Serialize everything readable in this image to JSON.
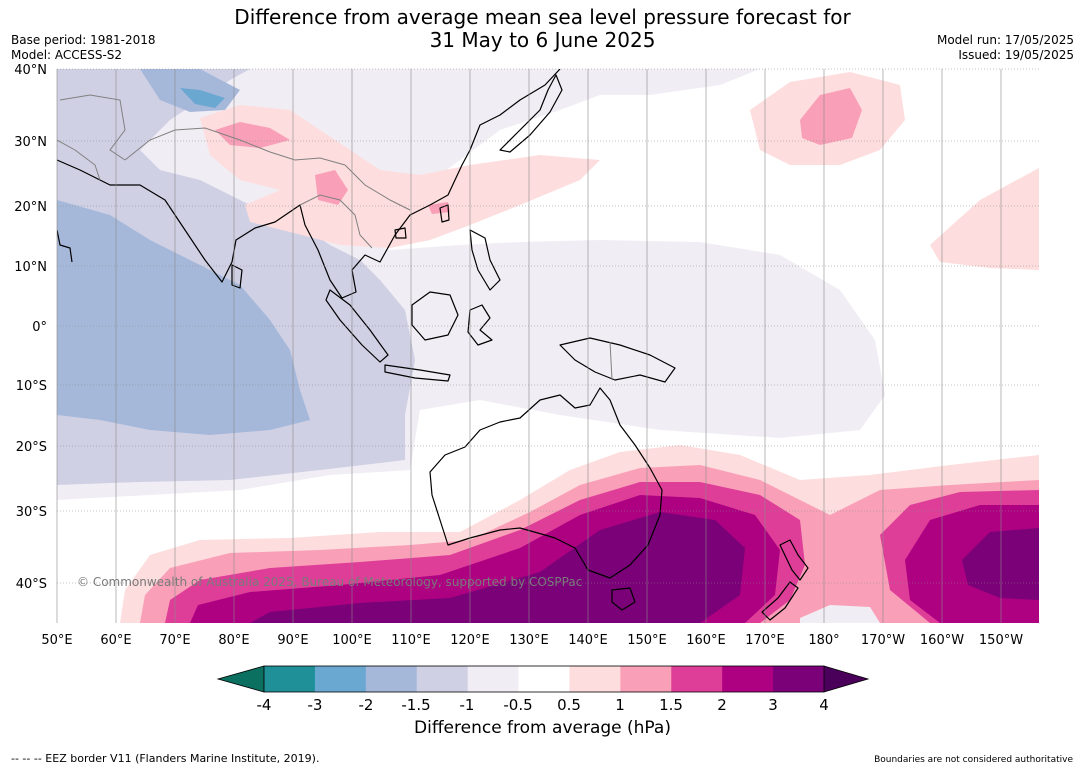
{
  "title_line1": "Difference from average mean sea level pressure forecast for",
  "title_line2": "31 May to 6 June 2025",
  "base_period": "Base period: 1981-2018",
  "model": "Model: ACCESS-S2",
  "model_run": "Model run: 17/05/2025",
  "issued": "Issued: 19/05/2025",
  "copyright": "© Commonwealth of Australia 2025, Bureau of Meteorology, supported by COSPPac",
  "lat_labels": [
    "40°N",
    "30°N",
    "20°N",
    "10°N",
    "0°",
    "10°S",
    "20°S",
    "30°S",
    "40°S"
  ],
  "lon_labels": [
    "50°E",
    "60°E",
    "70°E",
    "80°E",
    "90°E",
    "100°E",
    "110°E",
    "120°E",
    "130°E",
    "140°E",
    "150°E",
    "160°E",
    "170°E",
    "180°",
    "170°W",
    "160°W",
    "150°W"
  ],
  "colorbar": {
    "ticks": [
      "-4",
      "-3",
      "-2",
      "-1.5",
      "-1",
      "-0.5",
      "0.5",
      "1",
      "1.5",
      "2",
      "3",
      "4"
    ],
    "colors": [
      "#1f9098",
      "#6aa8d2",
      "#a6b8da",
      "#cfd0e4",
      "#f1edf4",
      "#ffffff",
      "#fddddd",
      "#f9a0b8",
      "#de3e98",
      "#ae0182",
      "#7a0177"
    ],
    "under_color": "#0b7060",
    "over_color": "#4a005a",
    "label": "Difference from average (hPa)"
  },
  "footer_left": "--  --  -- EEZ border V11 (Flanders Marine Institute, 2019).",
  "footer_right": "Boundaries are not considered authoritative"
}
